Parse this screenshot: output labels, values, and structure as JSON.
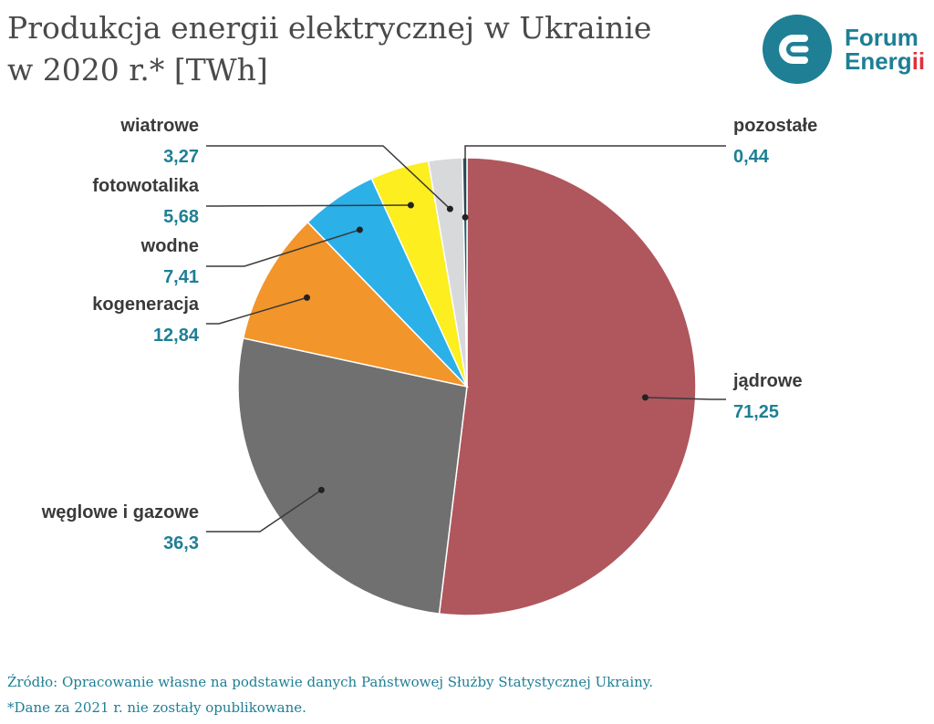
{
  "header": {
    "title_line1": "Produkcja energii elektrycznej w Ukrainie",
    "title_line2": "w 2020 r.* [TWh]"
  },
  "logo": {
    "line1": "Forum",
    "line2_main": "Energ",
    "line2_accent": "ii",
    "icon": "forum-energii-e-icon"
  },
  "chart_data": {
    "type": "pie",
    "title": "Produkcja energii elektrycznej w Ukrainie w 2020 r.* [TWh]",
    "slices": [
      {
        "label": "jądrowe",
        "value": 71.25,
        "value_label": "71,25",
        "color": "#b0565d"
      },
      {
        "label": "węglowe i gazowe",
        "value": 36.3,
        "value_label": "36,3",
        "color": "#707070"
      },
      {
        "label": "kogeneracja",
        "value": 12.84,
        "value_label": "12,84",
        "color": "#f2952a"
      },
      {
        "label": "wodne",
        "value": 7.41,
        "value_label": "7,41",
        "color": "#2bb0e8"
      },
      {
        "label": "fotowotalika",
        "value": 5.68,
        "value_label": "5,68",
        "color": "#fcee1f"
      },
      {
        "label": "wiatrowe",
        "value": 3.27,
        "value_label": "3,27",
        "color": "#d8d9db"
      },
      {
        "label": "pozostałe",
        "value": 0.44,
        "value_label": "0,44",
        "color": "#1e5f73"
      }
    ],
    "label_color": "#3a3a3a",
    "value_color": "#1e7f95"
  },
  "footer": {
    "source": "Źródło: Opracowanie własne na podstawie danych Państwowej Służby Statystycznej Ukrainy.",
    "note": "*Dane za 2021 r. nie zostały opublikowane."
  }
}
